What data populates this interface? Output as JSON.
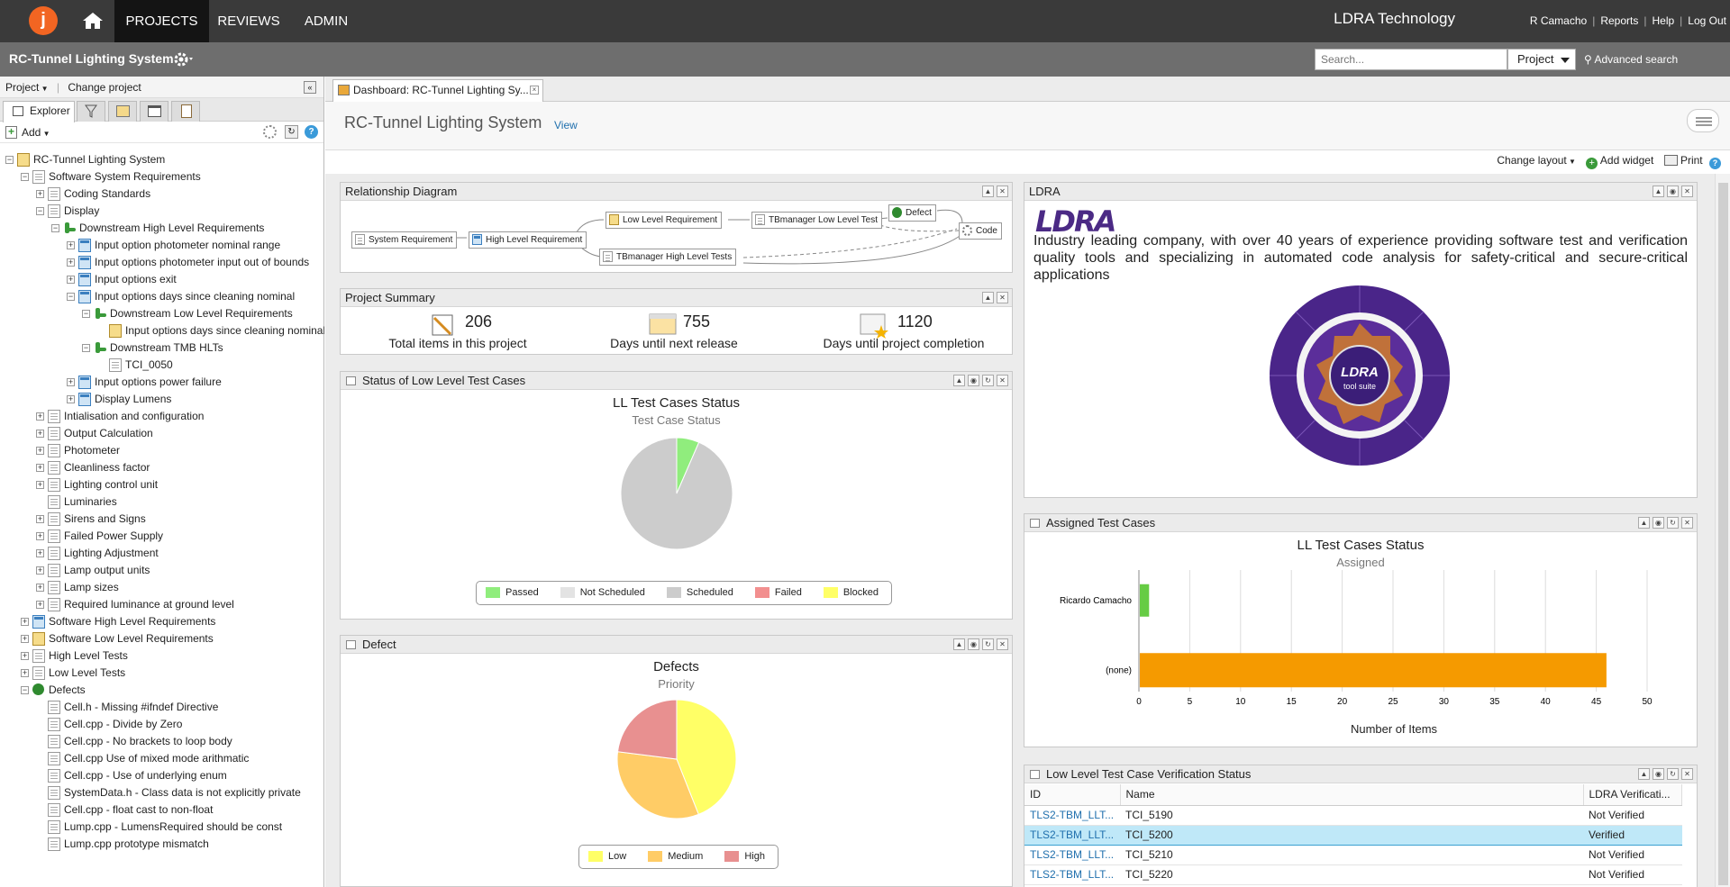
{
  "topnav": {
    "logo_letter": "j",
    "tabs": [
      {
        "label": "PROJECTS"
      },
      {
        "label": "REVIEWS"
      },
      {
        "label": "ADMIN"
      }
    ],
    "company": "LDRA Technology",
    "user": "R Camacho",
    "links": [
      "Reports",
      "Help",
      "Log Out"
    ]
  },
  "subbar": {
    "project_title": "RC-Tunnel Lighting System",
    "search_placeholder": "Search...",
    "search_scope": "Project",
    "advanced_search": "Advanced search"
  },
  "left_panel": {
    "project_menu": "Project",
    "change_project": "Change project",
    "explorer_tab": "Explorer",
    "add_label": "Add",
    "tree": [
      {
        "label": "RC-Tunnel Lighting System",
        "level": 0,
        "exp": "-",
        "icon": "project"
      },
      {
        "label": "Software System Requirements",
        "level": 1,
        "exp": "-",
        "icon": "doc"
      },
      {
        "label": "Coding Standards",
        "level": 2,
        "exp": "+",
        "icon": "doc"
      },
      {
        "label": "Display",
        "level": 2,
        "exp": "-",
        "icon": "doc"
      },
      {
        "label": "Downstream High Level Requirements",
        "level": 3,
        "exp": "-",
        "icon": "green"
      },
      {
        "label": "Input option photometer nominal range",
        "level": 4,
        "exp": "+",
        "icon": "hlr"
      },
      {
        "label": "Input options photometer input out of bounds",
        "level": 4,
        "exp": "+",
        "icon": "hlr"
      },
      {
        "label": "Input options exit",
        "level": 4,
        "exp": "+",
        "icon": "hlr"
      },
      {
        "label": "Input options days since cleaning nominal",
        "level": 4,
        "exp": "-",
        "icon": "hlr"
      },
      {
        "label": "Downstream Low Level Requirements",
        "level": 5,
        "exp": "-",
        "icon": "green"
      },
      {
        "label": "Input options days since cleaning nominal",
        "level": 6,
        "exp": "",
        "icon": "llr"
      },
      {
        "label": "Downstream TMB HLTs",
        "level": 5,
        "exp": "-",
        "icon": "green"
      },
      {
        "label": "TCI_0050",
        "level": 6,
        "exp": "",
        "icon": "doc"
      },
      {
        "label": "Input options power failure",
        "level": 4,
        "exp": "+",
        "icon": "hlr"
      },
      {
        "label": "Display Lumens",
        "level": 4,
        "exp": "+",
        "icon": "hlr"
      },
      {
        "label": "Intialisation and configuration",
        "level": 2,
        "exp": "+",
        "icon": "doc"
      },
      {
        "label": "Output Calculation",
        "level": 2,
        "exp": "+",
        "icon": "doc"
      },
      {
        "label": "Photometer",
        "level": 2,
        "exp": "+",
        "icon": "doc"
      },
      {
        "label": "Cleanliness factor",
        "level": 2,
        "exp": "+",
        "icon": "doc"
      },
      {
        "label": "Lighting control unit",
        "level": 2,
        "exp": "+",
        "icon": "doc"
      },
      {
        "label": "Luminaries",
        "level": 2,
        "exp": "",
        "icon": "doc"
      },
      {
        "label": "Sirens and Signs",
        "level": 2,
        "exp": "+",
        "icon": "doc"
      },
      {
        "label": "Failed Power Supply",
        "level": 2,
        "exp": "+",
        "icon": "doc"
      },
      {
        "label": "Lighting Adjustment",
        "level": 2,
        "exp": "+",
        "icon": "doc"
      },
      {
        "label": "Lamp output units",
        "level": 2,
        "exp": "+",
        "icon": "doc"
      },
      {
        "label": "Lamp sizes",
        "level": 2,
        "exp": "+",
        "icon": "doc"
      },
      {
        "label": "Required luminance at ground level",
        "level": 2,
        "exp": "+",
        "icon": "doc"
      },
      {
        "label": "Software High Level Requirements",
        "level": 1,
        "exp": "+",
        "icon": "hlr"
      },
      {
        "label": "Software Low Level Requirements",
        "level": 1,
        "exp": "+",
        "icon": "llr"
      },
      {
        "label": "High Level Tests",
        "level": 1,
        "exp": "+",
        "icon": "doc"
      },
      {
        "label": "Low Level Tests",
        "level": 1,
        "exp": "+",
        "icon": "doc"
      },
      {
        "label": "Defects",
        "level": 1,
        "exp": "-",
        "icon": "bug"
      },
      {
        "label": "Cell.h - Missing #ifndef Directive",
        "level": 2,
        "exp": "",
        "icon": "doc"
      },
      {
        "label": "Cell.cpp - Divide by Zero",
        "level": 2,
        "exp": "",
        "icon": "doc"
      },
      {
        "label": "Cell.cpp - No brackets to loop body",
        "level": 2,
        "exp": "",
        "icon": "doc"
      },
      {
        "label": "Cell.cpp Use of mixed mode arithmatic",
        "level": 2,
        "exp": "",
        "icon": "doc"
      },
      {
        "label": "Cell.cpp - Use of underlying enum",
        "level": 2,
        "exp": "",
        "icon": "doc"
      },
      {
        "label": "SystemData.h - Class data is not explicitly private",
        "level": 2,
        "exp": "",
        "icon": "doc"
      },
      {
        "label": "Cell.cpp - float cast to non-float",
        "level": 2,
        "exp": "",
        "icon": "doc"
      },
      {
        "label": "Lump.cpp - LumensRequired should be const",
        "level": 2,
        "exp": "",
        "icon": "doc"
      },
      {
        "label": "Lump.cpp prototype mismatch",
        "level": 2,
        "exp": "",
        "icon": "doc"
      }
    ]
  },
  "main": {
    "tab_label": "Dashboard: RC-Tunnel Lighting Sy...",
    "title": "RC-Tunnel Lighting System",
    "view_link": "View",
    "change_layout": "Change layout",
    "add_widget": "Add widget",
    "print": "Print"
  },
  "widgets": {
    "relationship": {
      "title": "Relationship Diagram",
      "nodes": [
        "System Requirement",
        "High Level Requirement",
        "Low Level Requirement",
        "TBmanager Low Level Test",
        "Defect",
        "Code",
        "TBmanager High Level Tests"
      ]
    },
    "summary": {
      "title": "Project Summary",
      "items": [
        {
          "value": "206",
          "label": "Total items in this project"
        },
        {
          "value": "755",
          "label": "Days until next release"
        },
        {
          "value": "1120",
          "label": "Days until project completion"
        }
      ]
    },
    "ll_status": {
      "title": "Status of Low Level Test Cases",
      "chart_title": "LL Test Cases Status",
      "chart_subtitle": "Test Case Status"
    },
    "defect": {
      "title": "Defect",
      "chart_title": "Defects",
      "chart_subtitle": "Priority"
    },
    "ldra": {
      "title": "LDRA",
      "logo": "LDRA",
      "description": "Industry leading company, with over 40 years of experience providing software test and verification quality tools and specializing in automated code analysis for safety-critical and secure-critical applications",
      "badge_line1": "LDRA",
      "badge_line2": "tool suite"
    },
    "assigned": {
      "title": "Assigned Test Cases",
      "chart_title": "LL Test Cases Status",
      "chart_subtitle": "Assigned",
      "xlabel": "Number of Items"
    },
    "verification": {
      "title": "Low Level Test Case Verification Status",
      "columns": [
        "ID",
        "Name",
        "LDRA Verificati..."
      ],
      "rows": [
        {
          "id": "TLS2-TBM_LLT...",
          "name": "TCI_5190",
          "status": "Not Verified"
        },
        {
          "id": "TLS2-TBM_LLT...",
          "name": "TCI_5200",
          "status": "Verified"
        },
        {
          "id": "TLS2-TBM_LLT...",
          "name": "TCI_5210",
          "status": "Not Verified"
        },
        {
          "id": "TLS2-TBM_LLT...",
          "name": "TCI_5220",
          "status": "Not Verified"
        }
      ]
    }
  },
  "chart_data": [
    {
      "type": "pie",
      "title": "LL Test Cases Status",
      "subtitle": "Test Case Status",
      "categories": [
        "Passed",
        "Not Scheduled",
        "Scheduled",
        "Failed",
        "Blocked"
      ],
      "values": [
        3,
        0,
        43,
        0,
        0
      ],
      "colors": [
        "#90ed7d",
        "#e3e3e3",
        "#cccccc",
        "#f28f8f",
        "#ffff66"
      ],
      "legend": "bottom"
    },
    {
      "type": "pie",
      "title": "Defects",
      "subtitle": "Priority",
      "categories": [
        "Low",
        "Medium",
        "High"
      ],
      "values": [
        44,
        33,
        23
      ],
      "colors": [
        "#ffff66",
        "#ffcc66",
        "#e89090"
      ],
      "legend": "bottom"
    },
    {
      "type": "bar",
      "orientation": "horizontal",
      "title": "LL Test Cases Status",
      "subtitle": "Assigned",
      "categories": [
        "Ricardo Camacho",
        "(none)"
      ],
      "values": [
        1,
        46
      ],
      "colors": [
        "#66cc44",
        "#f59a00"
      ],
      "xlabel": "Number of Items",
      "xlim": [
        0,
        50
      ],
      "xticks": [
        0,
        5,
        10,
        15,
        20,
        25,
        30,
        35,
        40,
        45,
        50
      ],
      "grid": true
    }
  ]
}
